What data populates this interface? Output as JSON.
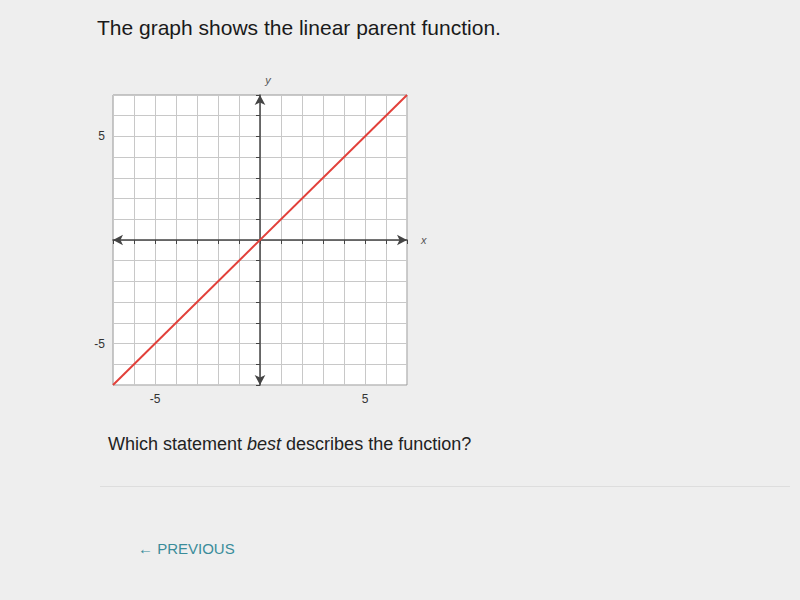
{
  "page": {
    "heading": "The graph shows the linear parent function.",
    "question": {
      "before": "Which statement ",
      "italic": "best",
      "after": " describes the function?"
    },
    "button": "← PREVIOUS"
  },
  "chart_data": {
    "type": "line",
    "x_label": "x",
    "y_label": "y",
    "x": [
      -7,
      7
    ],
    "values": [
      -7,
      7
    ],
    "color": "#e2403a",
    "xlim": [
      -7,
      7
    ],
    "ylim": [
      -7,
      7
    ],
    "xticks": [
      {
        "value": -7,
        "label": null
      },
      {
        "value": -6,
        "label": null
      },
      -5,
      {
        "value": -4,
        "label": null
      },
      {
        "value": -3,
        "label": null
      },
      {
        "value": -2,
        "label": null
      },
      {
        "value": -1,
        "label": null
      },
      {
        "value": 0,
        "label": null
      },
      {
        "value": 1,
        "label": null
      },
      {
        "value": 2,
        "label": null
      },
      {
        "value": 3,
        "label": null
      },
      {
        "value": 4,
        "label": null
      },
      5,
      {
        "value": 6,
        "label": null
      },
      {
        "value": 7,
        "label": null
      }
    ],
    "yticks": [
      {
        "value": -7,
        "label": null
      },
      {
        "value": -6,
        "label": null
      },
      -5,
      {
        "value": -4,
        "label": null
      },
      {
        "value": -3,
        "label": null
      },
      {
        "value": -2,
        "label": null
      },
      {
        "value": -1,
        "label": null
      },
      {
        "value": 0,
        "label": null
      },
      {
        "value": 1,
        "label": null
      },
      {
        "value": 2,
        "label": null
      },
      {
        "value": 3,
        "label": null
      },
      {
        "value": 4,
        "label": null
      },
      5,
      {
        "value": 6,
        "label": null
      },
      {
        "value": 7,
        "label": null
      }
    ],
    "grid": true
  }
}
